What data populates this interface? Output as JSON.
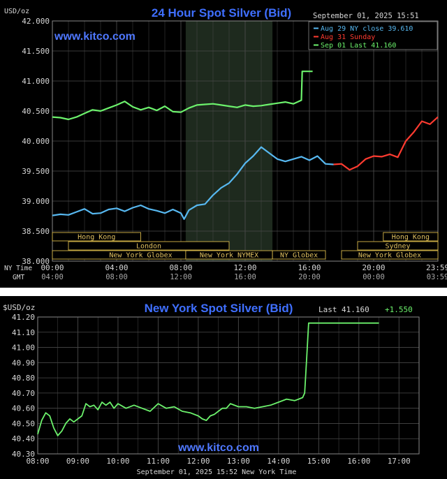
{
  "colors": {
    "background": "#000000",
    "grid": "#4a4a4a",
    "axis_text": "#d8d8d8",
    "title": "#3f6fff",
    "watermark": "#4f78ff",
    "aug29": "#57b8f0",
    "aug31": "#ff3b30",
    "sep01": "#6cf26c",
    "session_fill": "#1e2a1e",
    "market_border": "#d8b84a",
    "market_text": "#e0c060"
  },
  "chart_data": [
    {
      "type": "line",
      "title": "24 Hour Spot Silver (Bid)",
      "ylabel": "USD/oz",
      "watermark": "www.kitco.com",
      "timestamp": "September 01, 2025 15:51",
      "ylim": [
        38.0,
        42.0
      ],
      "yticks": [
        "42.000",
        "41.500",
        "41.000",
        "40.500",
        "40.000",
        "39.500",
        "39.000",
        "38.500",
        "38.000"
      ],
      "ytick_values": [
        42.0,
        41.5,
        41.0,
        40.5,
        40.0,
        39.5,
        39.0,
        38.5,
        38.0
      ],
      "xlim": [
        0,
        24
      ],
      "xticks_ny": [
        "00:00",
        "04:00",
        "08:00",
        "12:00",
        "16:00",
        "20:00",
        "23:59"
      ],
      "xticks_gmt": [
        "04:00",
        "08:00",
        "12:00",
        "16:00",
        "20:00",
        "00:00",
        "03:59"
      ],
      "xtick_hours": [
        0,
        4,
        8,
        12,
        16,
        20,
        23.98
      ],
      "row_labels": {
        "ny": "NY Time",
        "gmt": "GMT"
      },
      "grid": true,
      "legend_position": "top-right",
      "shaded_session_hours": [
        8.3,
        13.7
      ],
      "legend": [
        {
          "label": "Aug 29 NY close 39.610",
          "series": 0
        },
        {
          "label": "Aug 31 Sunday",
          "series": 1
        },
        {
          "label": "Sep 01 Last 41.160",
          "series": 2
        }
      ],
      "markets": [
        {
          "label": "Hong Kong",
          "start": 0,
          "end": 5.5,
          "row": 0
        },
        {
          "label": "London",
          "start": 1.0,
          "end": 11.0,
          "row": 1
        },
        {
          "label": "New York Globex",
          "start": 0,
          "end": 11.0,
          "row": 2
        },
        {
          "label": "New York NYMEX",
          "start": 8.3,
          "end": 13.7,
          "row": 2
        },
        {
          "label": "NY Globex",
          "start": 13.7,
          "end": 17.0,
          "row": 2
        },
        {
          "label": "Hong Kong",
          "start": 20.6,
          "end": 24,
          "row": 0
        },
        {
          "label": "Sydney",
          "start": 19.0,
          "end": 24,
          "row": 1
        },
        {
          "label": "New York Globex",
          "start": 18.0,
          "end": 24,
          "row": 2
        }
      ],
      "series": [
        {
          "name": "Aug 29 NY close 39.610",
          "color": "#57b8f0",
          "x": [
            0,
            0.5,
            1,
            1.5,
            2,
            2.5,
            3,
            3.5,
            4,
            4.5,
            5,
            5.5,
            6,
            6.5,
            7,
            7.5,
            8,
            8.2,
            8.5,
            9,
            9.5,
            10,
            10.5,
            11,
            11.5,
            12,
            12.5,
            13,
            13.5,
            14,
            14.5,
            15,
            15.5,
            16,
            16.5,
            17,
            17.5
          ],
          "y": [
            38.76,
            38.78,
            38.77,
            38.82,
            38.87,
            38.79,
            38.8,
            38.86,
            38.88,
            38.83,
            38.89,
            38.93,
            38.87,
            38.84,
            38.8,
            38.86,
            38.8,
            38.7,
            38.85,
            38.93,
            38.95,
            39.1,
            39.22,
            39.3,
            39.45,
            39.63,
            39.75,
            39.9,
            39.8,
            39.7,
            39.66,
            39.7,
            39.74,
            39.68,
            39.75,
            39.62,
            39.61
          ]
        },
        {
          "name": "Aug 31 Sunday",
          "color": "#ff3b30",
          "x": [
            17.5,
            18,
            18.5,
            19,
            19.5,
            20,
            20.5,
            21,
            21.5,
            22,
            22.5,
            23,
            23.5,
            24
          ],
          "y": [
            39.61,
            39.62,
            39.52,
            39.58,
            39.7,
            39.75,
            39.74,
            39.78,
            39.73,
            40.0,
            40.15,
            40.33,
            40.28,
            40.4
          ]
        },
        {
          "name": "Sep 01 Last 41.160",
          "color": "#6cf26c",
          "x": [
            0,
            0.5,
            1,
            1.5,
            2,
            2.5,
            3,
            3.5,
            4,
            4.5,
            5,
            5.5,
            6,
            6.5,
            7,
            7.5,
            8,
            8.5,
            9,
            9.5,
            10,
            10.5,
            11,
            11.5,
            12,
            12.5,
            13,
            13.5,
            14,
            14.5,
            15,
            15.5,
            15.55,
            16.2
          ],
          "y": [
            40.4,
            40.39,
            40.36,
            40.4,
            40.46,
            40.52,
            40.5,
            40.55,
            40.6,
            40.66,
            40.57,
            40.52,
            40.56,
            40.51,
            40.58,
            40.49,
            40.48,
            40.55,
            40.6,
            40.61,
            40.62,
            40.6,
            40.58,
            40.56,
            40.6,
            40.58,
            40.59,
            40.61,
            40.63,
            40.65,
            40.62,
            40.68,
            41.16,
            41.16
          ]
        }
      ]
    },
    {
      "type": "line",
      "title": "New York Spot Silver (Bid)",
      "ylabel": "$USD/oz",
      "watermark": "www.kitco.com",
      "last_label": "Last",
      "last_value": "41.160",
      "change": "+1.550",
      "timestamp": "September 01, 2025 15:52 New York Time",
      "ylim": [
        40.3,
        41.2
      ],
      "yticks": [
        "41.20",
        "41.10",
        "41.00",
        "40.90",
        "40.80",
        "40.70",
        "40.60",
        "40.50",
        "40.40",
        "40.30"
      ],
      "ytick_values": [
        41.2,
        41.1,
        41.0,
        40.9,
        40.8,
        40.7,
        40.6,
        40.5,
        40.4,
        40.3
      ],
      "xlim": [
        8,
        17.5
      ],
      "xticks": [
        "08:00",
        "09:00",
        "10:00",
        "11:00",
        "12:00",
        "13:00",
        "14:00",
        "15:00",
        "16:00",
        "17:00"
      ],
      "xtick_hours": [
        8,
        9,
        10,
        11,
        12,
        13,
        14,
        15,
        16,
        17
      ],
      "grid": true,
      "series": [
        {
          "name": "",
          "color": "#6cf26c",
          "x": [
            8.0,
            8.1,
            8.2,
            8.3,
            8.4,
            8.5,
            8.6,
            8.7,
            8.8,
            8.9,
            9.0,
            9.1,
            9.2,
            9.3,
            9.4,
            9.5,
            9.6,
            9.7,
            9.8,
            9.9,
            10.0,
            10.2,
            10.4,
            10.6,
            10.8,
            11.0,
            11.2,
            11.4,
            11.6,
            11.8,
            12.0,
            12.1,
            12.2,
            12.3,
            12.4,
            12.5,
            12.6,
            12.7,
            12.8,
            13.0,
            13.2,
            13.4,
            13.6,
            13.8,
            14.0,
            14.2,
            14.4,
            14.5,
            14.6,
            14.65,
            14.7,
            14.75,
            14.8,
            15.0,
            15.5,
            16.0,
            16.5
          ],
          "y": [
            40.43,
            40.52,
            40.57,
            40.55,
            40.47,
            40.42,
            40.45,
            40.5,
            40.53,
            40.51,
            40.53,
            40.55,
            40.63,
            40.61,
            40.62,
            40.59,
            40.64,
            40.62,
            40.64,
            40.6,
            40.63,
            40.6,
            40.62,
            40.6,
            40.58,
            40.63,
            40.6,
            40.61,
            40.58,
            40.57,
            40.55,
            40.53,
            40.52,
            40.55,
            40.56,
            40.58,
            40.6,
            40.6,
            40.63,
            40.61,
            40.61,
            40.6,
            40.61,
            40.62,
            40.64,
            40.66,
            40.65,
            40.66,
            40.67,
            40.7,
            40.93,
            41.16,
            41.16,
            41.16,
            41.16,
            41.16,
            41.16
          ]
        }
      ]
    }
  ]
}
